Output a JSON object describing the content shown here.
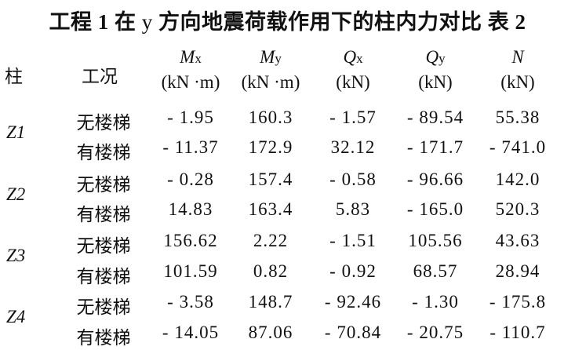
{
  "title": {
    "prefix": "工程 1 在 ",
    "axis": "y",
    "suffix": " 方向地震荷载作用下的柱内力对比  表 2"
  },
  "headers": {
    "column": "柱",
    "condition": "工况",
    "quantities": [
      {
        "symbol": "M",
        "sub": "x",
        "unit": "(kN ·m)"
      },
      {
        "symbol": "M",
        "sub": "y",
        "unit": "(kN ·m)"
      },
      {
        "symbol": "Q",
        "sub": "x",
        "unit": "(kN)"
      },
      {
        "symbol": "Q",
        "sub": "y",
        "unit": "(kN)"
      },
      {
        "symbol": "N",
        "sub": "",
        "unit": "(kN)"
      }
    ]
  },
  "groups": [
    {
      "column": "Z1",
      "rows": [
        {
          "condition": "无楼梯",
          "values": [
            "- 1.95",
            "160.3",
            "- 1.57",
            "- 89.54",
            "55.38"
          ]
        },
        {
          "condition": "有楼梯",
          "values": [
            "- 11.37",
            "172.9",
            "32.12",
            "- 171.7",
            "- 741.0"
          ]
        }
      ]
    },
    {
      "column": "Z2",
      "rows": [
        {
          "condition": "无楼梯",
          "values": [
            "- 0.28",
            "157.4",
            "- 0.58",
            "- 96.66",
            "142.0"
          ]
        },
        {
          "condition": "有楼梯",
          "values": [
            "14.83",
            "163.4",
            "5.83",
            "- 165.0",
            "520.3"
          ]
        }
      ]
    },
    {
      "column": "Z3",
      "rows": [
        {
          "condition": "无楼梯",
          "values": [
            "156.62",
            "2.22",
            "- 1.51",
            "105.56",
            "43.63"
          ]
        },
        {
          "condition": "有楼梯",
          "values": [
            "101.59",
            "0.82",
            "- 0.92",
            "68.57",
            "28.94"
          ]
        }
      ]
    },
    {
      "column": "Z4",
      "rows": [
        {
          "condition": "无楼梯",
          "values": [
            "- 3.58",
            "148.7",
            "- 92.46",
            "- 1.30",
            "- 175.8"
          ]
        },
        {
          "condition": "有楼梯",
          "values": [
            "- 14.05",
            "87.06",
            "- 70.84",
            "- 20.75",
            "- 110.7"
          ]
        }
      ]
    }
  ]
}
